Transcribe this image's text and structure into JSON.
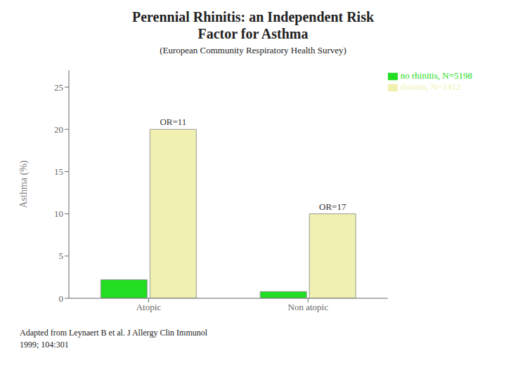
{
  "chart_data": {
    "type": "bar",
    "title": "Perennial Rhinitis: an Independent Risk\nFactor for Asthma",
    "subtitle": "(European Community Respiratory Health Survey)",
    "y_label": "Asthma (%)",
    "categories": [
      "Atopic",
      "Non atopic"
    ],
    "series": [
      {
        "name": "no rhinitis, N=5198",
        "color": "#22dd22",
        "values": [
          2.2,
          0.8
        ]
      },
      {
        "name": "rhinitis, N=1412",
        "color": "#f0f0b0",
        "values": [
          20.0,
          10.0
        ]
      }
    ],
    "annotations": [
      "OR=11",
      "OR=17"
    ],
    "ylim": [
      0,
      27
    ],
    "yticks": [
      0,
      5,
      10,
      15,
      20,
      25
    ],
    "grid": false,
    "legend": "upper right",
    "footnote": [
      "Adapted from Leynaert B et al. J Allergy Clin Immunol",
      "1999; 104:301"
    ]
  }
}
